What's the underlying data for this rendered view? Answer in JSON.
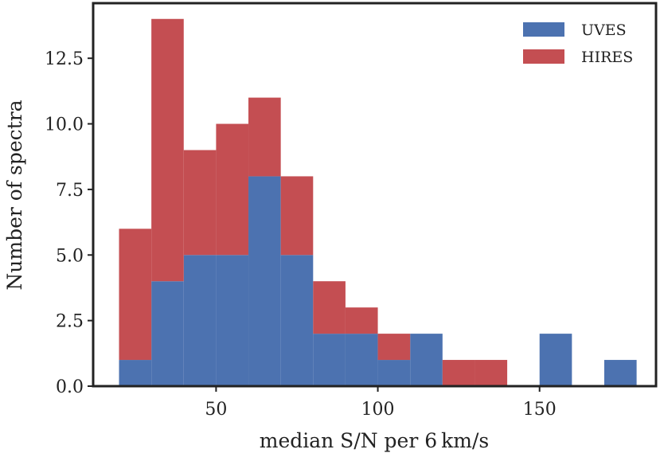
{
  "chart_data": {
    "type": "bar",
    "stacked": true,
    "title": "",
    "xlabel": "median S/N per 6 km/s",
    "ylabel": "Number of spectra",
    "xlim": [
      12,
      186
    ],
    "ylim": [
      0,
      14.6
    ],
    "xticks": [
      50,
      100,
      150
    ],
    "xtick_labels": [
      "50",
      "100",
      "150"
    ],
    "yticks": [
      0,
      2.5,
      5,
      7.5,
      10,
      12.5
    ],
    "ytick_labels": [
      "0.0",
      "2.5",
      "5.0",
      "7.5",
      "10.0",
      "12.5"
    ],
    "grid": false,
    "legend_position": "top-right",
    "bins": [
      [
        20,
        30
      ],
      [
        30,
        40
      ],
      [
        40,
        50
      ],
      [
        50,
        60
      ],
      [
        60,
        70
      ],
      [
        70,
        80
      ],
      [
        80,
        90
      ],
      [
        90,
        100
      ],
      [
        100,
        110
      ],
      [
        110,
        120
      ],
      [
        120,
        130
      ],
      [
        130,
        140
      ],
      [
        140,
        150
      ],
      [
        150,
        160
      ],
      [
        160,
        170
      ],
      [
        170,
        180
      ]
    ],
    "series": [
      {
        "name": "UVES",
        "color": "#4c72b0",
        "values": [
          1,
          4,
          5,
          5,
          8,
          5,
          2,
          2,
          1,
          2,
          0,
          0,
          0,
          2,
          0,
          1
        ]
      },
      {
        "name": "HIRES",
        "color": "#c44e52",
        "values": [
          5,
          10,
          4,
          5,
          3,
          3,
          2,
          1,
          1,
          0,
          1,
          1,
          0,
          0,
          0,
          0
        ]
      }
    ]
  }
}
